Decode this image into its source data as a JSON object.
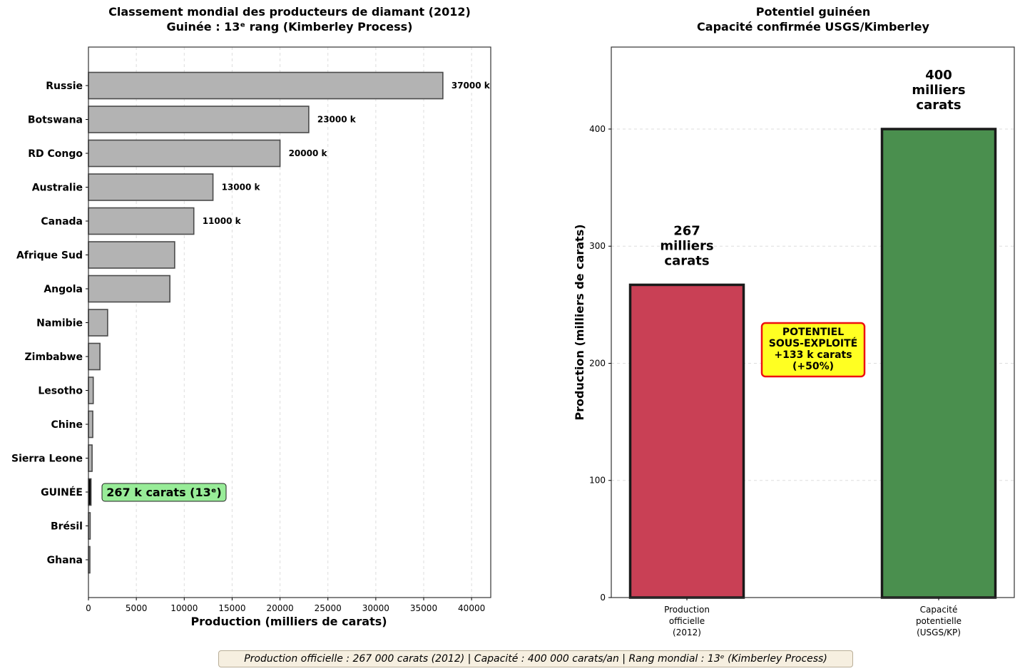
{
  "chart_data": [
    {
      "type": "bar",
      "orientation": "horizontal",
      "title": "Classement mondial des producteurs de diamant (2012)",
      "subtitle": "Guinée : 13ᵉ rang (Kimberley Process)",
      "xlabel": "Production (milliers de carats)",
      "ylabel": "",
      "xlim": [
        0,
        42000
      ],
      "xticks": [
        "0",
        "5000",
        "10000",
        "15000",
        "20000",
        "25000",
        "30000",
        "35000",
        "40000"
      ],
      "categories": [
        "Russie",
        "Botswana",
        "RD Congo",
        "Australie",
        "Canada",
        "Afrique Sud",
        "Angola",
        "Namibie",
        "Zimbabwe",
        "Lesotho",
        "Chine",
        "Sierra Leone",
        "GUINÉE",
        "Brésil",
        "Ghana"
      ],
      "values": [
        37000,
        23000,
        20000,
        13000,
        11000,
        9000,
        8500,
        2000,
        1200,
        500,
        450,
        380,
        267,
        180,
        150
      ],
      "value_labels": [
        "37000 k",
        "23000 k",
        "20000 k",
        "13000 k",
        "11000 k",
        "",
        "",
        "",
        "",
        "",
        "",
        "",
        "",
        "",
        ""
      ],
      "highlight_index": 12,
      "highlight_label": "267 k carats (13ᵉ)",
      "colors": {
        "bar": "#b3b3b3",
        "edge": "#4a4a4a",
        "highlight": "#000000",
        "annotation_bg": "#98ec98"
      }
    },
    {
      "type": "bar",
      "title": "Potentiel guinéen",
      "subtitle": "Capacité confirmée USGS/Kimberley",
      "xlabel": "",
      "ylabel": "Production (milliers de carats)",
      "ylim": [
        0,
        470
      ],
      "yticks": [
        "0",
        "100",
        "200",
        "300",
        "400"
      ],
      "categories": [
        [
          "Production",
          "officielle",
          "(2012)"
        ],
        [
          "Capacité",
          "potentielle",
          "(USGS/KP)"
        ]
      ],
      "values": [
        267,
        400
      ],
      "value_labels": [
        [
          "267",
          "milliers",
          "carats"
        ],
        [
          "400",
          "milliers",
          "carats"
        ]
      ],
      "colors": {
        "bars": [
          "#c94055",
          "#4a8f4e"
        ],
        "edge": "#1a1a1a",
        "annotation_bg": "#ffff22",
        "annotation_edge": "#ee1111"
      },
      "annotation": [
        "POTENTIEL",
        "SOUS-EXPLOITÉ",
        "+133 k carats",
        "(+50%)"
      ]
    }
  ],
  "footer": {
    "text": "Production officielle : 267 000 carats (2012) | Capacité : 400 000 carats/an | Rang mondial : 13ᵉ (Kimberley Process)"
  }
}
